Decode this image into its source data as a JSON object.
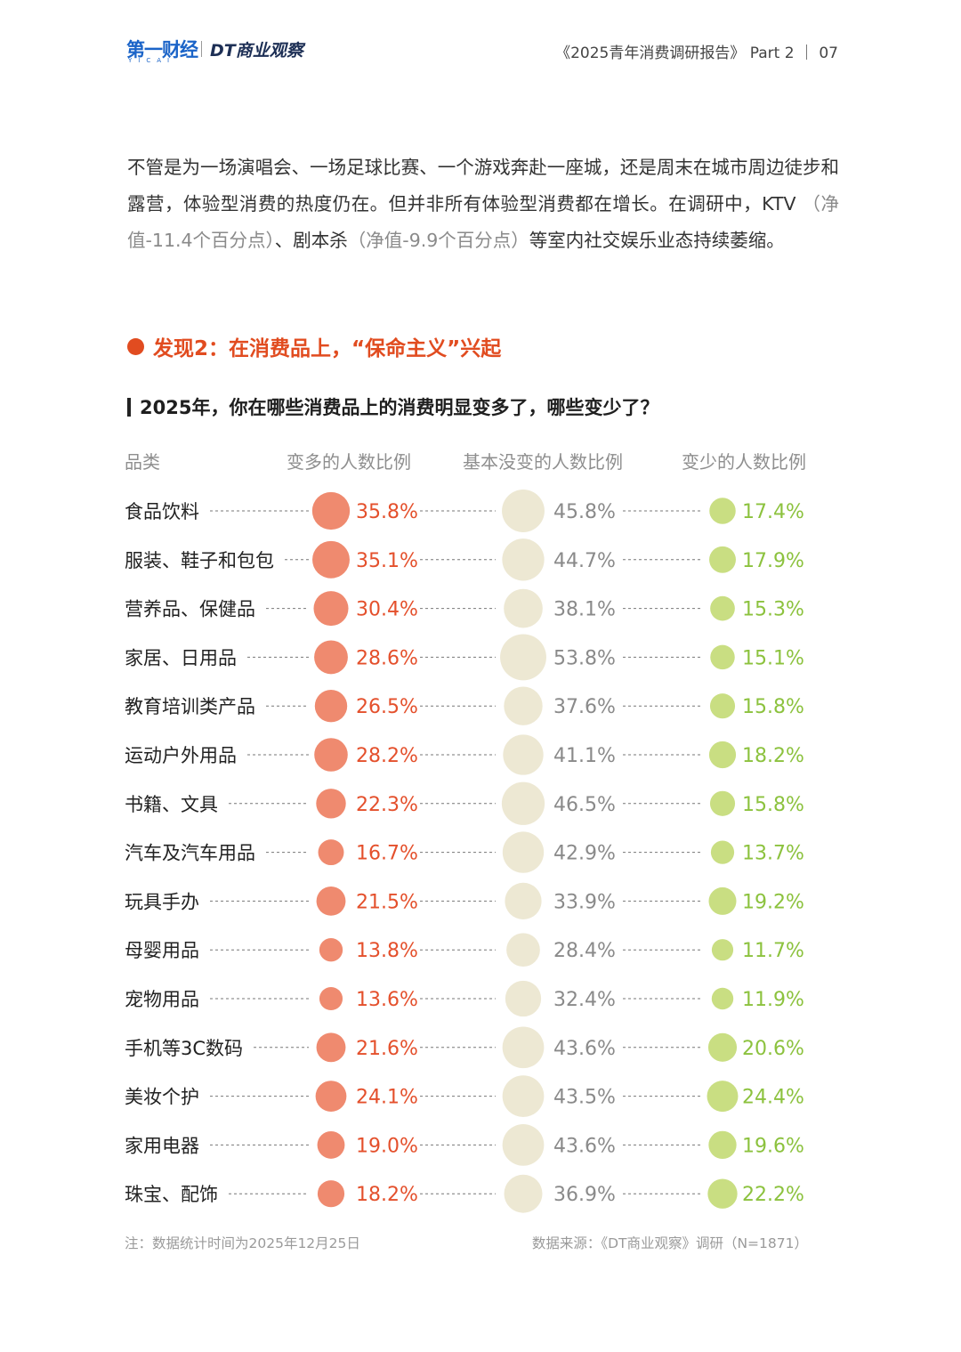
{
  "header": {
    "logo_primary": "第一财经",
    "logo_primary_sub": "YICAI",
    "logo_secondary": "DT商业观察",
    "report_title": "《2025青年消费调研报告》 Part 2 ｜ 07"
  },
  "intro": {
    "part1": "不管是为一场演唱会、一场足球比赛、一个游戏奔赴一座城，还是周末在城市周边徒步和露营，体验型消费的热度仍在。但并非所有体验型消费都在增长。在调研中，KTV ",
    "note1": "（净值-11.4个百分点）",
    "part2": "、剧本杀",
    "note2": "（净值-9.9个百分点）",
    "part3": "等室内社交娱乐业态持续萎缩。"
  },
  "finding": {
    "text": "发现2：在消费品上，“保命主义”兴起"
  },
  "chart_data": {
    "type": "table",
    "title": "2025年，你在哪些消费品上的消费明显变多了，哪些变少了？",
    "columns": [
      "品类",
      "变多的人数比例",
      "基本没变的人数比例",
      "变少的人数比例"
    ],
    "series": [
      {
        "name": "变多的人数比例",
        "color": "#ef8a6f",
        "text_color": "#e4502c"
      },
      {
        "name": "基本没变的人数比例",
        "color": "#ede8d3",
        "text_color": "#8a8a8a"
      },
      {
        "name": "变少的人数比例",
        "color": "#c9de82",
        "text_color": "#8cc23e"
      }
    ],
    "rows": [
      {
        "category": "食品饮料",
        "values": [
          35.8,
          45.8,
          17.4
        ],
        "labels": [
          "35.8%",
          "45.8%",
          "17.4%"
        ]
      },
      {
        "category": "服装、鞋子和包包",
        "values": [
          35.1,
          44.7,
          17.9
        ],
        "labels": [
          "35.1%",
          "44.7%",
          "17.9%"
        ]
      },
      {
        "category": "营养品、保健品",
        "values": [
          30.4,
          38.1,
          15.3
        ],
        "labels": [
          "30.4%",
          "38.1%",
          "15.3%"
        ]
      },
      {
        "category": "家居、日用品",
        "values": [
          28.6,
          53.8,
          15.1
        ],
        "labels": [
          "28.6%",
          "53.8%",
          "15.1%"
        ]
      },
      {
        "category": "教育培训类产品",
        "values": [
          26.5,
          37.6,
          15.8
        ],
        "labels": [
          "26.5%",
          "37.6%",
          "15.8%"
        ]
      },
      {
        "category": "运动户外用品",
        "values": [
          28.2,
          41.1,
          18.2
        ],
        "labels": [
          "28.2%",
          "41.1%",
          "18.2%"
        ]
      },
      {
        "category": "书籍、文具",
        "values": [
          22.3,
          46.5,
          15.8
        ],
        "labels": [
          "22.3%",
          "46.5%",
          "15.8%"
        ]
      },
      {
        "category": "汽车及汽车用品",
        "values": [
          16.7,
          42.9,
          13.7
        ],
        "labels": [
          "16.7%",
          "42.9%",
          "13.7%"
        ]
      },
      {
        "category": "玩具手办",
        "values": [
          21.5,
          33.9,
          19.2
        ],
        "labels": [
          "21.5%",
          "33.9%",
          "19.2%"
        ]
      },
      {
        "category": "母婴用品",
        "values": [
          13.8,
          28.4,
          11.7
        ],
        "labels": [
          "13.8%",
          "28.4%",
          "11.7%"
        ]
      },
      {
        "category": "宠物用品",
        "values": [
          13.6,
          32.4,
          11.9
        ],
        "labels": [
          "13.6%",
          "32.4%",
          "11.9%"
        ]
      },
      {
        "category": "手机等3C数码",
        "values": [
          21.6,
          43.6,
          20.6
        ],
        "labels": [
          "21.6%",
          "43.6%",
          "20.6%"
        ]
      },
      {
        "category": "美妆个护",
        "values": [
          24.1,
          43.5,
          24.4
        ],
        "labels": [
          "24.1%",
          "43.5%",
          "24.4%"
        ]
      },
      {
        "category": "家用电器",
        "values": [
          19.0,
          43.6,
          19.6
        ],
        "labels": [
          "19.0%",
          "43.6%",
          "19.6%"
        ]
      },
      {
        "category": "珠宝、配饰",
        "values": [
          18.2,
          36.9,
          22.2
        ],
        "labels": [
          "18.2%",
          "36.9%",
          "22.2%"
        ]
      }
    ]
  },
  "footer": {
    "note": "注：数据统计时间为2025年12月25日",
    "source": "数据来源：《DT商业观察》调研（N=1871）"
  }
}
